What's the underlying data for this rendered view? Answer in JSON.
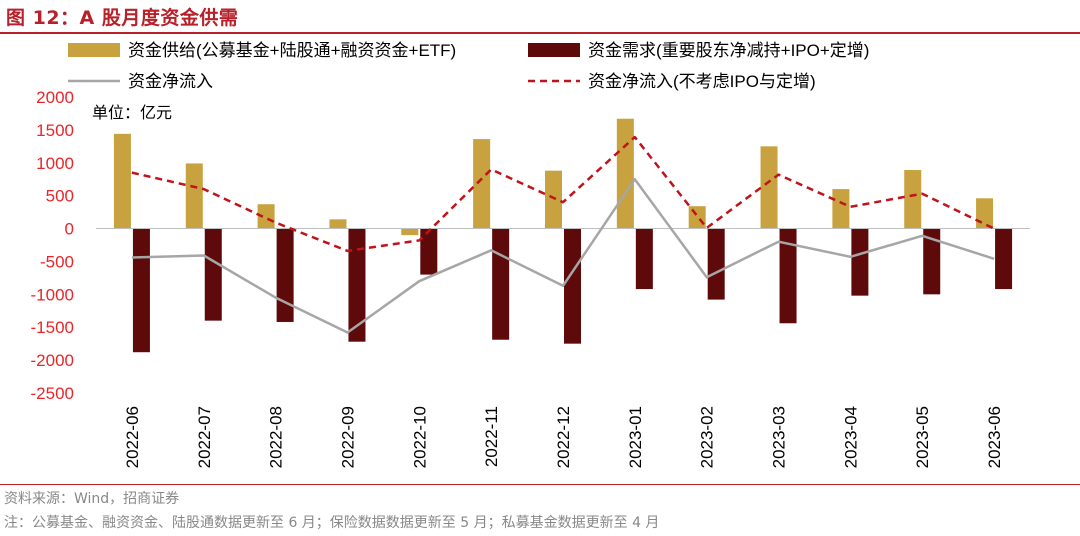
{
  "header": {
    "title": "图 12：A 股月度资金供需"
  },
  "footer": {
    "source": "资料来源：Wind，招商证券",
    "note": "注：公募基金、融资资金、陆股通数据更新至 6 月；保险数据数据更新至 5 月；私募基金数据更新至 4 月"
  },
  "colors": {
    "accent": "#b8202a",
    "supply": "#c8a23e",
    "demand": "#5e0a0b",
    "net_flow": "#a6a6a6",
    "net_flow_ex": "#c0131b",
    "axis_tick_text": "#e8262a"
  },
  "chart_data": {
    "type": "bar",
    "title": "A 股月度资金供需",
    "unit_label": "单位：亿元",
    "categories": [
      "2022-06",
      "2022-07",
      "2022-08",
      "2022-09",
      "2022-10",
      "2022-11",
      "2022-12",
      "2023-01",
      "2023-02",
      "2023-03",
      "2023-04",
      "2023-05",
      "2023-06"
    ],
    "ylim": [
      -2500,
      2000
    ],
    "yticks": [
      2000,
      1500,
      1000,
      500,
      0,
      -500,
      -1000,
      -1500,
      -2000,
      -2500
    ],
    "series": [
      {
        "name": "资金供给(公募基金+陆股通+融资资金+ETF)",
        "type": "bar",
        "values": [
          1440,
          990,
          370,
          140,
          -100,
          1360,
          880,
          1670,
          340,
          1250,
          600,
          890,
          460
        ]
      },
      {
        "name": "资金需求(重要股东净减持+IPO+定增)",
        "type": "bar",
        "values": [
          -1880,
          -1400,
          -1420,
          -1720,
          -700,
          -1690,
          -1750,
          -920,
          -1080,
          -1440,
          -1020,
          -1000,
          -920
        ]
      },
      {
        "name": "资金净流入",
        "type": "line",
        "values": [
          -440,
          -410,
          -1050,
          -1580,
          -800,
          -330,
          -870,
          750,
          -740,
          -200,
          -430,
          -110,
          -460
        ]
      },
      {
        "name": "资金净流入(不考虑IPO与定增)",
        "type": "line",
        "dashed": true,
        "values": [
          850,
          600,
          90,
          -340,
          -180,
          900,
          400,
          1390,
          10,
          820,
          330,
          530,
          0
        ]
      }
    ]
  }
}
